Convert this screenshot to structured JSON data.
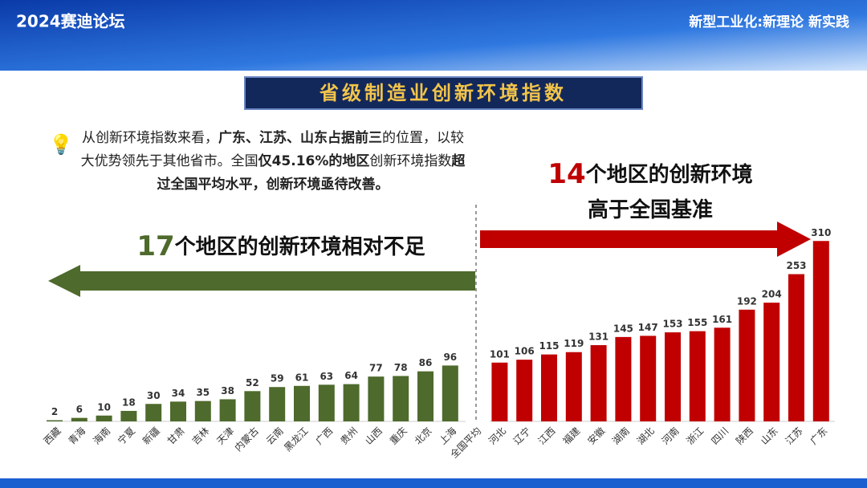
{
  "header": {
    "left": "2024赛迪论坛",
    "right": "新型工业化:新理论 新实践"
  },
  "chart_data": {
    "type": "bar",
    "title": "省级制造业创新环境指数",
    "note": [
      {
        "text": "从创新环境指数来看，",
        "bold": false
      },
      {
        "text": "广东、江苏、山东占据前三",
        "bold": true
      },
      {
        "text": "的位置，以较大优势领先于其他省市。全国",
        "bold": false
      },
      {
        "text": "仅45.16%的地区",
        "bold": true
      },
      {
        "text": "创新环境指数",
        "bold": false
      },
      {
        "text": "超过全国平均水平",
        "bold": true
      },
      {
        "text": "，创新环境亟待改善。",
        "bold": true
      }
    ],
    "annotations": [
      {
        "number": 17,
        "lines": [
          "个地区的创新环境相对不足"
        ],
        "color": "#4e6a2c"
      },
      {
        "number": 14,
        "lines": [
          "个地区的创新环境",
          "高于全国基准"
        ],
        "color": "#c00000"
      }
    ],
    "categories": [
      "西藏",
      "青海",
      "海南",
      "宁夏",
      "新疆",
      "甘肃",
      "吉林",
      "天津",
      "内蒙古",
      "云南",
      "黑龙江",
      "广西",
      "贵州",
      "山西",
      "重庆",
      "北京",
      "上海",
      "全国平均",
      "河北",
      "辽宁",
      "江西",
      "福建",
      "安徽",
      "湖南",
      "湖北",
      "河南",
      "浙江",
      "四川",
      "陕西",
      "山东",
      "江苏",
      "广东"
    ],
    "values": [
      2,
      6,
      10,
      18,
      30,
      34,
      35,
      38,
      52,
      59,
      61,
      63,
      64,
      77,
      78,
      86,
      96,
      null,
      101,
      106,
      115,
      119,
      131,
      145,
      147,
      153,
      155,
      161,
      192,
      204,
      253,
      310
    ],
    "colors": [
      "#4e6a2c",
      "#4e6a2c",
      "#4e6a2c",
      "#4e6a2c",
      "#4e6a2c",
      "#4e6a2c",
      "#4e6a2c",
      "#4e6a2c",
      "#4e6a2c",
      "#4e6a2c",
      "#4e6a2c",
      "#4e6a2c",
      "#4e6a2c",
      "#4e6a2c",
      "#4e6a2c",
      "#4e6a2c",
      "#4e6a2c",
      null,
      "#c00000",
      "#c00000",
      "#c00000",
      "#c00000",
      "#c00000",
      "#c00000",
      "#c00000",
      "#c00000",
      "#c00000",
      "#c00000",
      "#c00000",
      "#c00000",
      "#c00000",
      "#c00000"
    ],
    "ylim": [
      0,
      320
    ]
  }
}
